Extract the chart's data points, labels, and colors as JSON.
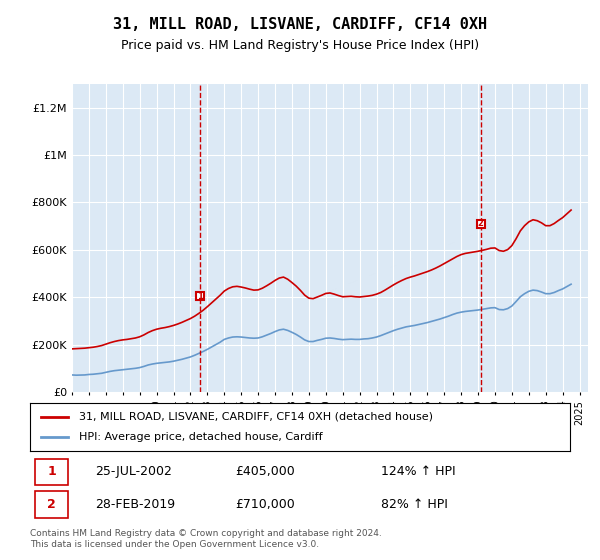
{
  "title": "31, MILL ROAD, LISVANE, CARDIFF, CF14 0XH",
  "subtitle": "Price paid vs. HM Land Registry's House Price Index (HPI)",
  "legend_line1": "31, MILL ROAD, LISVANE, CARDIFF, CF14 0XH (detached house)",
  "legend_line2": "HPI: Average price, detached house, Cardiff",
  "annotation1_label": "1",
  "annotation1_date": "25-JUL-2002",
  "annotation1_price": "£405,000",
  "annotation1_hpi": "124% ↑ HPI",
  "annotation1_year": 2002.56,
  "annotation1_value": 405000,
  "annotation2_label": "2",
  "annotation2_date": "28-FEB-2019",
  "annotation2_price": "£710,000",
  "annotation2_hpi": "82% ↑ HPI",
  "annotation2_year": 2019.16,
  "annotation2_value": 710000,
  "footer": "Contains HM Land Registry data © Crown copyright and database right 2024.\nThis data is licensed under the Open Government Licence v3.0.",
  "bg_color": "#dce9f5",
  "plot_bg": "#dce9f5",
  "red_color": "#cc0000",
  "blue_color": "#6699cc",
  "ylim": [
    0,
    1300000
  ],
  "xlim_start": 1995,
  "xlim_end": 2025.5,
  "hpi_data": {
    "years": [
      1995.0,
      1995.25,
      1995.5,
      1995.75,
      1996.0,
      1996.25,
      1996.5,
      1996.75,
      1997.0,
      1997.25,
      1997.5,
      1997.75,
      1998.0,
      1998.25,
      1998.5,
      1998.75,
      1999.0,
      1999.25,
      1999.5,
      1999.75,
      2000.0,
      2000.25,
      2000.5,
      2000.75,
      2001.0,
      2001.25,
      2001.5,
      2001.75,
      2002.0,
      2002.25,
      2002.5,
      2002.75,
      2003.0,
      2003.25,
      2003.5,
      2003.75,
      2004.0,
      2004.25,
      2004.5,
      2004.75,
      2005.0,
      2005.25,
      2005.5,
      2005.75,
      2006.0,
      2006.25,
      2006.5,
      2006.75,
      2007.0,
      2007.25,
      2007.5,
      2007.75,
      2008.0,
      2008.25,
      2008.5,
      2008.75,
      2009.0,
      2009.25,
      2009.5,
      2009.75,
      2010.0,
      2010.25,
      2010.5,
      2010.75,
      2011.0,
      2011.25,
      2011.5,
      2011.75,
      2012.0,
      2012.25,
      2012.5,
      2012.75,
      2013.0,
      2013.25,
      2013.5,
      2013.75,
      2014.0,
      2014.25,
      2014.5,
      2014.75,
      2015.0,
      2015.25,
      2015.5,
      2015.75,
      2016.0,
      2016.25,
      2016.5,
      2016.75,
      2017.0,
      2017.25,
      2017.5,
      2017.75,
      2018.0,
      2018.25,
      2018.5,
      2018.75,
      2019.0,
      2019.25,
      2019.5,
      2019.75,
      2020.0,
      2020.25,
      2020.5,
      2020.75,
      2021.0,
      2021.25,
      2021.5,
      2021.75,
      2022.0,
      2022.25,
      2022.5,
      2022.75,
      2023.0,
      2023.25,
      2023.5,
      2023.75,
      2024.0,
      2024.25,
      2024.5
    ],
    "values": [
      72000,
      71000,
      71500,
      72000,
      74000,
      75000,
      77000,
      79000,
      83000,
      87000,
      90000,
      92000,
      94000,
      96000,
      98000,
      100000,
      103000,
      108000,
      114000,
      118000,
      121000,
      123000,
      125000,
      127000,
      130000,
      134000,
      138000,
      143000,
      148000,
      155000,
      163000,
      171000,
      180000,
      190000,
      200000,
      210000,
      222000,
      228000,
      232000,
      233000,
      232000,
      230000,
      228000,
      227000,
      228000,
      233000,
      240000,
      247000,
      255000,
      262000,
      265000,
      260000,
      252000,
      243000,
      232000,
      220000,
      213000,
      213000,
      218000,
      222000,
      227000,
      228000,
      226000,
      223000,
      221000,
      222000,
      223000,
      222000,
      222000,
      224000,
      225000,
      228000,
      232000,
      238000,
      245000,
      252000,
      259000,
      265000,
      270000,
      275000,
      278000,
      281000,
      285000,
      289000,
      293000,
      298000,
      303000,
      308000,
      314000,
      320000,
      327000,
      333000,
      337000,
      340000,
      342000,
      344000,
      346000,
      349000,
      352000,
      355000,
      356000,
      348000,
      347000,
      352000,
      363000,
      382000,
      402000,
      415000,
      425000,
      430000,
      428000,
      422000,
      415000,
      415000,
      420000,
      428000,
      435000,
      445000,
      455000
    ]
  },
  "property_data": {
    "years": [
      1995.0,
      1995.25,
      1995.5,
      1995.75,
      1996.0,
      1996.25,
      1996.5,
      1996.75,
      1997.0,
      1997.25,
      1997.5,
      1997.75,
      1998.0,
      1998.25,
      1998.5,
      1998.75,
      1999.0,
      1999.25,
      1999.5,
      1999.75,
      2000.0,
      2000.25,
      2000.5,
      2000.75,
      2001.0,
      2001.25,
      2001.5,
      2001.75,
      2002.0,
      2002.25,
      2002.5,
      2002.75,
      2003.0,
      2003.25,
      2003.5,
      2003.75,
      2004.0,
      2004.25,
      2004.5,
      2004.75,
      2005.0,
      2005.25,
      2005.5,
      2005.75,
      2006.0,
      2006.25,
      2006.5,
      2006.75,
      2007.0,
      2007.25,
      2007.5,
      2007.75,
      2008.0,
      2008.25,
      2008.5,
      2008.75,
      2009.0,
      2009.25,
      2009.5,
      2009.75,
      2010.0,
      2010.25,
      2010.5,
      2010.75,
      2011.0,
      2011.25,
      2011.5,
      2011.75,
      2012.0,
      2012.25,
      2012.5,
      2012.75,
      2013.0,
      2013.25,
      2013.5,
      2013.75,
      2014.0,
      2014.25,
      2014.5,
      2014.75,
      2015.0,
      2015.25,
      2015.5,
      2015.75,
      2016.0,
      2016.25,
      2016.5,
      2016.75,
      2017.0,
      2017.25,
      2017.5,
      2017.75,
      2018.0,
      2018.25,
      2018.5,
      2018.75,
      2019.0,
      2019.25,
      2019.5,
      2019.75,
      2020.0,
      2020.25,
      2020.5,
      2020.75,
      2021.0,
      2021.25,
      2021.5,
      2021.75,
      2022.0,
      2022.25,
      2022.5,
      2022.75,
      2023.0,
      2023.25,
      2023.5,
      2023.75,
      2024.0,
      2024.25,
      2024.5
    ],
    "values": [
      182000,
      183000,
      184000,
      185000,
      187000,
      189000,
      192000,
      196000,
      202000,
      208000,
      213000,
      217000,
      220000,
      222000,
      225000,
      228000,
      233000,
      241000,
      251000,
      259000,
      265000,
      269000,
      272000,
      276000,
      281000,
      287000,
      294000,
      302000,
      310000,
      320000,
      332000,
      345000,
      360000,
      376000,
      392000,
      408000,
      426000,
      437000,
      444000,
      446000,
      443000,
      439000,
      434000,
      430000,
      431000,
      438000,
      448000,
      459000,
      471000,
      481000,
      485000,
      476000,
      462000,
      447000,
      429000,
      409000,
      396000,
      394000,
      401000,
      408000,
      416000,
      418000,
      413000,
      407000,
      402000,
      403000,
      404000,
      402000,
      401000,
      403000,
      405000,
      408000,
      413000,
      420000,
      430000,
      441000,
      452000,
      462000,
      471000,
      479000,
      485000,
      490000,
      496000,
      502000,
      508000,
      515000,
      523000,
      532000,
      542000,
      552000,
      562000,
      572000,
      580000,
      585000,
      588000,
      591000,
      594000,
      598000,
      602000,
      607000,
      608000,
      597000,
      594000,
      601000,
      618000,
      647000,
      680000,
      702000,
      718000,
      727000,
      723000,
      714000,
      702000,
      702000,
      711000,
      724000,
      736000,
      752000,
      768000
    ]
  }
}
